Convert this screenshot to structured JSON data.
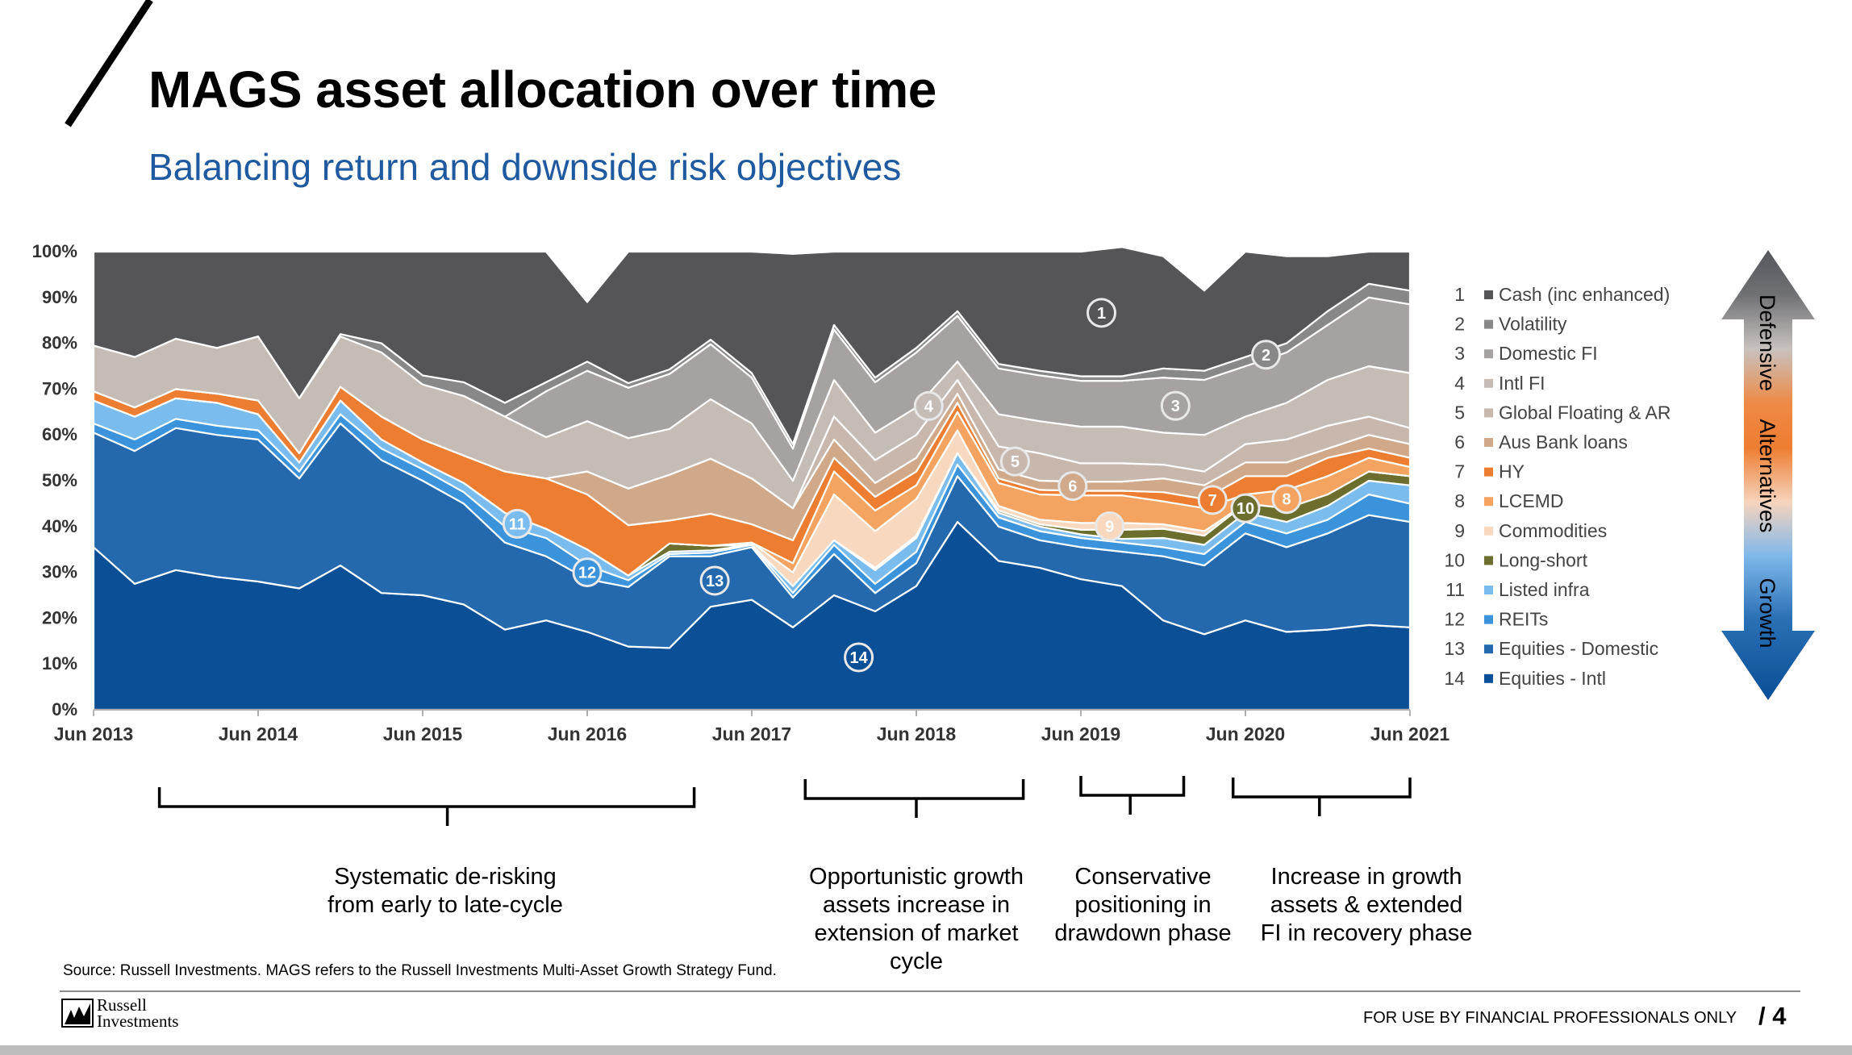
{
  "header": {
    "title": "MAGS asset allocation over time",
    "subtitle": "Balancing return and downside risk objectives"
  },
  "chart_data": {
    "type": "area",
    "stacked": true,
    "x": [
      "Jun 2013",
      "Sep 2013",
      "Dec 2013",
      "Mar 2014",
      "Jun 2014",
      "Sep 2014",
      "Dec 2014",
      "Mar 2015",
      "Jun 2015",
      "Sep 2015",
      "Dec 2015",
      "Mar 2016",
      "Jun 2016",
      "Sep 2016",
      "Dec 2016",
      "Mar 2017",
      "Jun 2017",
      "Sep 2017",
      "Dec 2017",
      "Mar 2018",
      "Jun 2018",
      "Sep 2018",
      "Dec 2018",
      "Mar 2019",
      "Jun 2019",
      "Sep 2019",
      "Dec 2019",
      "Mar 2020",
      "Jun 2020",
      "Sep 2020",
      "Dec 2020",
      "Mar 2021",
      "Jun 2021"
    ],
    "x_ticks": [
      "Jun 2013",
      "Jun 2014",
      "Jun 2015",
      "Jun 2016",
      "Jun 2017",
      "Jun 2018",
      "Jun 2019",
      "Jun 2020",
      "Jun 2021"
    ],
    "y_ticks": [
      "0%",
      "10%",
      "20%",
      "30%",
      "40%",
      "50%",
      "60%",
      "70%",
      "80%",
      "90%",
      "100%"
    ],
    "ylim": [
      0,
      100
    ],
    "series": [
      {
        "id": 14,
        "name": "Equities - Intl",
        "color": "#0b4f96",
        "values": [
          35.5,
          27.5,
          30.5,
          29,
          28,
          26.5,
          31.5,
          25.5,
          25,
          23,
          17.5,
          19.5,
          17,
          13.8,
          13.5,
          22.5,
          24,
          18,
          25,
          21.5,
          27,
          41,
          32.5,
          31,
          28.5,
          27,
          19.5,
          16.5,
          19.5,
          17,
          17.5,
          18.5,
          18
        ]
      },
      {
        "id": 13,
        "name": "Equities - Domestic",
        "color": "#2469ae",
        "values": [
          25,
          29,
          31,
          31,
          31,
          24,
          31,
          29,
          25,
          22,
          19,
          14,
          11.5,
          13,
          20,
          11,
          11.5,
          6.5,
          9,
          4,
          5,
          10,
          7.5,
          6,
          7,
          7.5,
          14,
          15,
          19,
          18.5,
          21,
          24,
          23
        ]
      },
      {
        "id": 12,
        "name": "REITs",
        "color": "#3a93db",
        "values": [
          2,
          2.5,
          2,
          2,
          2,
          1.5,
          2,
          2.5,
          2.5,
          2.5,
          3.5,
          4,
          3,
          1.5,
          0.5,
          0.8,
          0.5,
          1,
          2,
          2,
          2.5,
          2.5,
          2,
          2,
          2,
          2,
          2,
          2.5,
          2.5,
          3,
          3,
          4.5,
          4
        ]
      },
      {
        "id": 11,
        "name": "Listed infra",
        "color": "#7bbcee",
        "values": [
          5,
          5,
          4.5,
          5,
          3.5,
          2,
          3,
          2,
          1.5,
          2,
          3,
          2,
          3.5,
          1,
          0.5,
          0.5,
          0,
          1.5,
          1,
          3,
          3,
          2.5,
          1,
          1,
          0.8,
          0.8,
          2,
          2,
          2,
          2.5,
          3,
          3,
          4
        ]
      },
      {
        "id": 10,
        "name": "Long-short",
        "color": "#6b6e2c",
        "values": [
          0,
          0,
          0,
          0,
          0,
          0,
          0,
          0,
          0,
          0,
          0,
          0,
          0,
          0,
          1.8,
          1,
          0,
          0,
          0,
          0.5,
          0.5,
          0,
          0.5,
          0.5,
          1,
          2,
          2,
          2,
          2,
          3,
          2.5,
          2,
          2
        ]
      },
      {
        "id": 9,
        "name": "Commodities",
        "color": "#f8d9c0",
        "values": [
          0,
          0,
          0,
          0,
          0,
          0,
          0,
          0,
          0,
          0,
          0,
          0,
          0,
          0,
          0,
          0,
          0.5,
          3,
          10,
          8,
          8,
          5,
          1,
          1,
          1.5,
          1.5,
          1,
          1,
          0,
          0,
          0,
          0,
          0
        ]
      },
      {
        "id": 8,
        "name": "LCEMD",
        "color": "#f4a460",
        "values": [
          0,
          0,
          0,
          0,
          0,
          0,
          0,
          0,
          0,
          0,
          0,
          0,
          0,
          0,
          0,
          0,
          0,
          2,
          5,
          4.5,
          3,
          4,
          5,
          5.5,
          6,
          6,
          5,
          5,
          2,
          4,
          4,
          3,
          2
        ]
      },
      {
        "id": 7,
        "name": "HY",
        "color": "#ed7d31",
        "values": [
          2,
          2,
          2,
          2,
          3,
          2,
          3,
          5,
          5,
          6,
          9,
          11,
          12,
          11,
          5,
          7,
          4,
          5,
          3,
          3,
          3,
          2,
          1,
          1,
          1,
          1,
          2,
          2,
          4,
          3,
          4,
          2,
          2
        ]
      },
      {
        "id": 6,
        "name": "Aus Bank loans",
        "color": "#d0a98b",
        "values": [
          0,
          0,
          0,
          0,
          0,
          0,
          0,
          0,
          0,
          0,
          0,
          0,
          5,
          8,
          10,
          12,
          10,
          7,
          4,
          3,
          3,
          2,
          2,
          2,
          2,
          2,
          3,
          3,
          3,
          3,
          2,
          3,
          3
        ]
      },
      {
        "id": 5,
        "name": "Global Floating & AR",
        "color": "#c8b7ad",
        "values": [
          0,
          0,
          0,
          0,
          0,
          0,
          0,
          0,
          0,
          0,
          0,
          0,
          0,
          0,
          0,
          0,
          0,
          0,
          5,
          5,
          5,
          3,
          5,
          6,
          4,
          4,
          3,
          3,
          4,
          5,
          5,
          4,
          3.5
        ]
      },
      {
        "id": 4,
        "name": "Intl FI",
        "color": "#c6bcb6",
        "values": [
          10,
          11,
          11,
          10,
          14,
          12,
          11,
          14,
          12,
          13,
          12,
          9,
          11,
          11,
          10,
          13,
          12,
          6,
          8,
          6,
          6,
          4,
          7,
          7,
          8,
          8,
          7,
          8,
          6,
          8,
          10,
          11,
          12
        ]
      },
      {
        "id": 3,
        "name": "Domestic FI",
        "color": "#a6a2a2",
        "values": [
          0,
          0,
          0,
          0,
          0,
          0,
          0,
          0,
          0,
          0,
          0,
          10,
          11,
          11,
          12,
          12,
          10,
          7,
          11,
          11,
          12,
          10,
          10,
          10,
          10,
          10,
          12,
          12,
          11,
          11,
          12,
          15,
          15
        ]
      },
      {
        "id": 2,
        "name": "Volatility",
        "color": "#888888",
        "values": [
          0,
          0,
          0,
          0,
          0,
          0,
          0.5,
          2,
          2,
          3,
          3,
          2,
          2,
          1,
          1,
          1,
          1,
          1,
          1,
          1,
          1,
          1,
          1,
          1,
          1,
          1,
          2,
          2,
          2,
          2,
          3,
          3,
          3
        ]
      },
      {
        "id": 1,
        "name": "Cash (inc enhanced)",
        "color": "#555558",
        "values": [
          20.5,
          23,
          19,
          21,
          18.5,
          32,
          18,
          20,
          27,
          28.5,
          33,
          28.5,
          13,
          28.7,
          25.7,
          19.2,
          26.5,
          41.5,
          16,
          27.5,
          21,
          13,
          24.5,
          26,
          27.2,
          28.2,
          24.5,
          17.5,
          23,
          19,
          12,
          7,
          8.5
        ]
      }
    ],
    "markers": [
      {
        "label": "1",
        "series_id": 1
      },
      {
        "label": "2",
        "series_id": 2
      },
      {
        "label": "3",
        "series_id": 3
      },
      {
        "label": "4",
        "series_id": 4
      },
      {
        "label": "5",
        "series_id": 5
      },
      {
        "label": "6",
        "series_id": 6
      },
      {
        "label": "7",
        "series_id": 7
      },
      {
        "label": "8",
        "series_id": 8
      },
      {
        "label": "9",
        "series_id": 9
      },
      {
        "label": "10",
        "series_id": 10
      },
      {
        "label": "11",
        "series_id": 11
      },
      {
        "label": "12",
        "series_id": 12
      },
      {
        "label": "13",
        "series_id": 13
      },
      {
        "label": "14",
        "series_id": 14
      }
    ],
    "gradient_arrow_labels": [
      "Defensive",
      "Alternatives",
      "Growth"
    ]
  },
  "annotations": [
    {
      "lines": [
        "Systematic de-risking",
        "from early to late-cycle"
      ]
    },
    {
      "lines": [
        "Opportunistic growth",
        "assets increase in",
        "extension of market",
        "cycle"
      ]
    },
    {
      "lines": [
        "Conservative",
        "positioning in",
        "drawdown phase"
      ]
    },
    {
      "lines": [
        "Increase in growth",
        "assets & extended",
        "FI in recovery phase"
      ]
    }
  ],
  "footer": {
    "source": "Source: Russell Investments. MAGS refers to the Russell Investments Multi-Asset Growth Strategy Fund.",
    "logo_line1": "Russell",
    "logo_line2": "Investments",
    "note": "FOR USE BY FINANCIAL PROFESSIONALS ONLY",
    "page": "/ 4"
  }
}
